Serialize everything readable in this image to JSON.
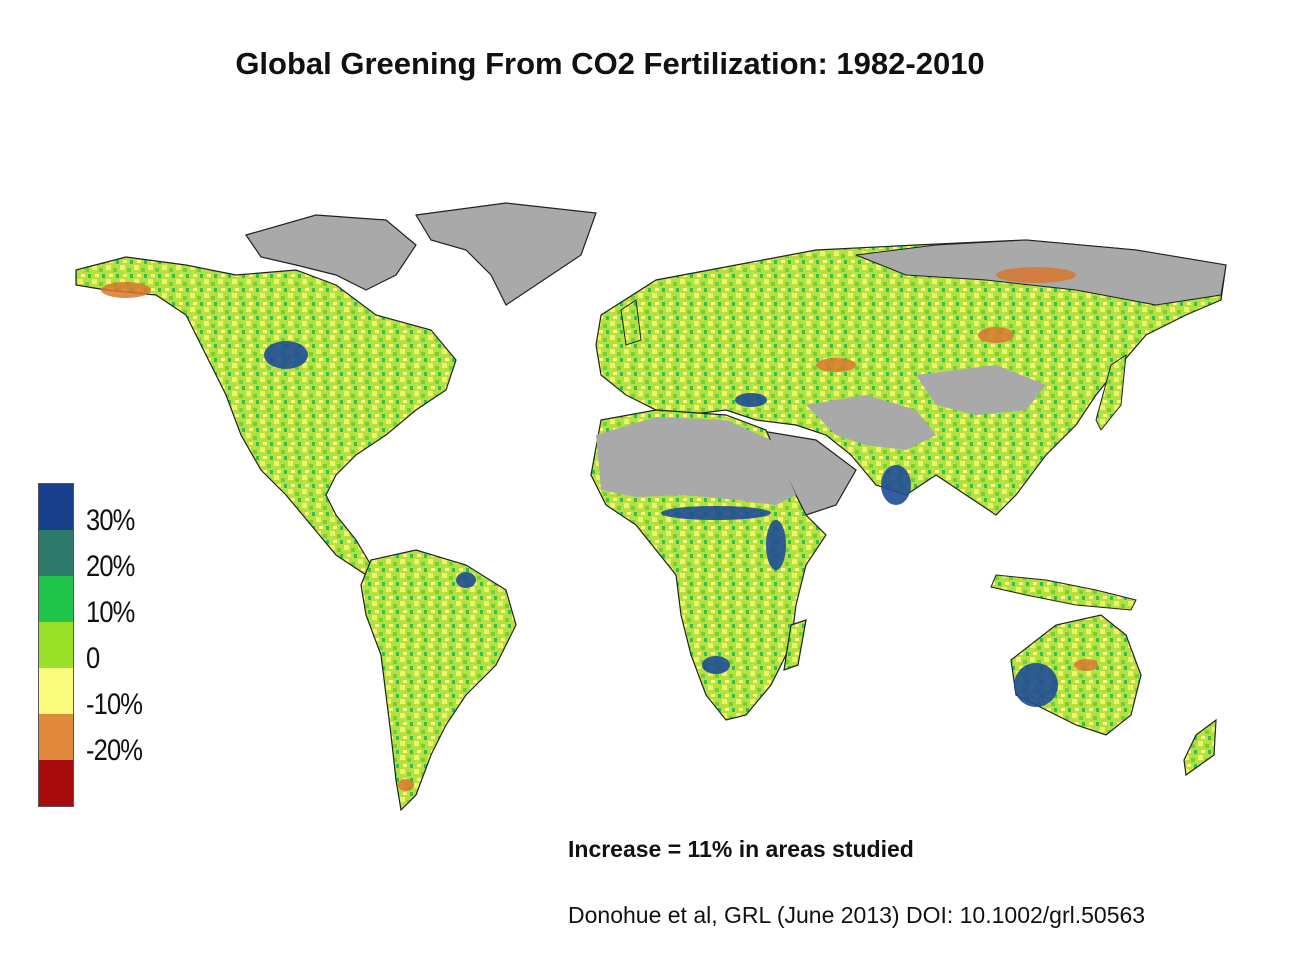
{
  "title": "Global Greening From CO2 Fertilization: 1982-2010",
  "legend": {
    "classes": [
      {
        "color": "#183f8c",
        "label": "30%"
      },
      {
        "color": "#2e7a6a",
        "label": "20%"
      },
      {
        "color": "#1fc64b",
        "label": "10%"
      },
      {
        "color": "#9ae22a",
        "label": "0"
      },
      {
        "color": "#fbfb7e",
        "label": "-10%"
      },
      {
        "color": "#e0893a",
        "label": "-20%"
      },
      {
        "color": "#a80b0b",
        "label": ""
      }
    ]
  },
  "note": "Increase = 11% in areas studied",
  "citation": "Donohue et al, GRL (June 2013) DOI: 10.1002/grl.50563",
  "colors": {
    "no_data": "#a9a9a9",
    "coastline": "#222222",
    "ocean": "#ffffff"
  }
}
